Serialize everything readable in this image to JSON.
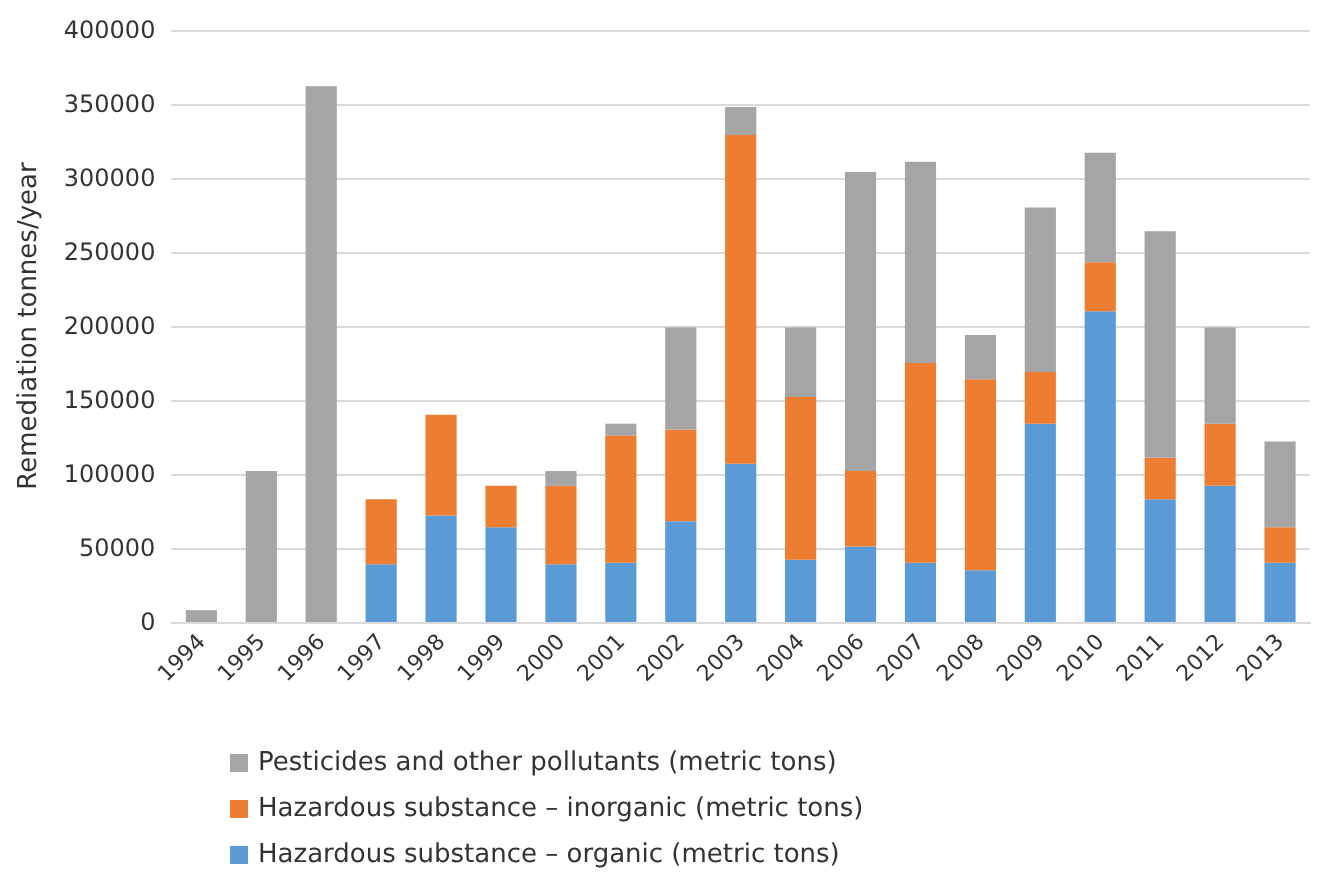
{
  "chart_data": {
    "type": "bar",
    "stacked": true,
    "ylabel": "Remediation tonnes/year",
    "categories": [
      "1994",
      "1995",
      "1996",
      "1997",
      "1998",
      "1999",
      "2000",
      "2001",
      "2002",
      "2003",
      "2004",
      "2006",
      "2007",
      "2008",
      "2009",
      "2010",
      "2011",
      "2012",
      "2013"
    ],
    "series": [
      {
        "name": "Hazardous substance – organic (metric tons)",
        "color": "#5b9bd5",
        "values": [
          null,
          null,
          null,
          39000,
          72000,
          64000,
          39000,
          40000,
          68000,
          107000,
          42000,
          51000,
          40000,
          35000,
          134000,
          210000,
          83000,
          92000,
          40000
        ]
      },
      {
        "name": "Hazardous substance – inorganic (metric tons)",
        "color": "#ed7d31",
        "values": [
          null,
          null,
          null,
          44000,
          68000,
          28000,
          53000,
          86000,
          62000,
          222000,
          110000,
          51000,
          135000,
          129000,
          35000,
          33000,
          28000,
          42000,
          24000
        ]
      },
      {
        "name": "Pesticides and other pollutants (metric tons)",
        "color": "#a5a5a5",
        "values": [
          8000,
          102000,
          362000,
          null,
          null,
          null,
          10000,
          8000,
          69000,
          19000,
          47000,
          202000,
          136000,
          30000,
          111000,
          74000,
          153000,
          65000,
          58000
        ]
      }
    ],
    "ylim": [
      0,
      400000
    ],
    "yticks": [
      0,
      50000,
      100000,
      150000,
      200000,
      250000,
      300000,
      350000,
      400000
    ],
    "grid": "y",
    "legend": "bottom"
  }
}
